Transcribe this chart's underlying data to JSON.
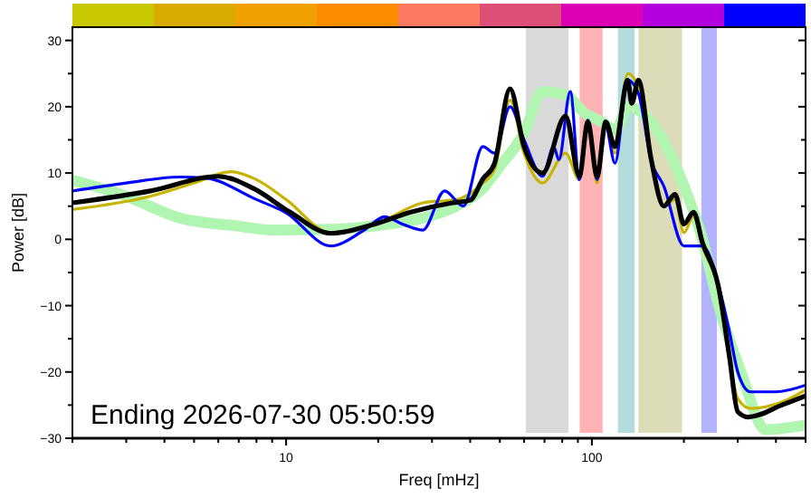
{
  "chart_data": {
    "type": "line",
    "xlabel": "Freq [mHz]",
    "ylabel": "Power [dB]",
    "log": "x",
    "xlim": [
      2,
      500
    ],
    "ylim": [
      -30,
      32
    ],
    "xticks": [
      {
        "value": 2,
        "label": null
      },
      {
        "value": 3,
        "label": null
      },
      {
        "value": 4,
        "label": null
      },
      {
        "value": 5,
        "label": null
      },
      {
        "value": 6,
        "label": null
      },
      {
        "value": 7,
        "label": null
      },
      {
        "value": 8,
        "label": null
      },
      {
        "value": 9,
        "label": null
      },
      10,
      {
        "value": 20,
        "label": null
      },
      {
        "value": 30,
        "label": null
      },
      {
        "value": 40,
        "label": null
      },
      {
        "value": 50,
        "label": null
      },
      {
        "value": 60,
        "label": null
      },
      {
        "value": 70,
        "label": null
      },
      {
        "value": 80,
        "label": null
      },
      {
        "value": 90,
        "label": null
      },
      100,
      {
        "value": 200,
        "label": null
      },
      {
        "value": 300,
        "label": null
      },
      {
        "value": 400,
        "label": null
      },
      {
        "value": 500,
        "label": null
      }
    ],
    "yticks": [
      -30,
      {
        "value": -25,
        "label": null
      },
      -20,
      {
        "value": -15,
        "label": null
      },
      -10,
      {
        "value": -5,
        "label": null
      },
      0,
      {
        "value": 5,
        "label": null
      },
      10,
      {
        "value": 15,
        "label": null
      },
      20,
      {
        "value": 25,
        "label": null
      },
      30
    ],
    "grid": false,
    "line_style": "solid",
    "bands": [
      {
        "axis": "x",
        "from": 60,
        "to": 85,
        "color": "#d9d9d9"
      },
      {
        "axis": "x",
        "from": 90,
        "to": 110,
        "color": "#ffb3b3"
      },
      {
        "axis": "x",
        "from": 120,
        "to": 140,
        "color": "#b3dcdc"
      },
      {
        "axis": "x",
        "from": 140,
        "to": 200,
        "color": "#dcdcb8"
      },
      {
        "axis": "x",
        "from": 225,
        "to": 260,
        "color": "#b3b3ff"
      }
    ],
    "series": [
      {
        "color": "#b0f5b0",
        "x": [
          2,
          3,
          4.5,
          7,
          9,
          14,
          20,
          28,
          36,
          44,
          50,
          60,
          69,
          82,
          95,
          108,
          120,
          131,
          156,
          198,
          230,
          259,
          310,
          370,
          500
        ],
        "values": [
          8.9,
          6.5,
          3.2,
          2,
          1.4,
          1.5,
          2.1,
          3.2,
          5,
          7.7,
          11,
          16,
          22.3,
          21.8,
          19,
          17.7,
          16.5,
          20,
          17.7,
          8.6,
          0,
          -9.7,
          -20.5,
          -28.7,
          -28
        ]
      },
      {
        "color": "#c8b400",
        "x": [
          2,
          3.6,
          5,
          6.6,
          8,
          10,
          14,
          20,
          28,
          36,
          44,
          48,
          54,
          60,
          69,
          82,
          91,
          97,
          104,
          111,
          119,
          131,
          142,
          156,
          172,
          187,
          200,
          215,
          230,
          259,
          282,
          300,
          330,
          420,
          500
        ],
        "values": [
          4.5,
          6.5,
          8.5,
          10.2,
          9,
          6,
          1,
          2.5,
          5.5,
          6,
          8.5,
          10.5,
          21,
          13,
          8.5,
          13,
          9,
          17,
          8.5,
          17,
          13,
          25,
          23,
          12,
          5,
          6,
          1,
          3.5,
          -1,
          -7.5,
          -18,
          -24,
          -25.5,
          -24.5,
          -22.7
        ]
      },
      {
        "color": "#0000ff",
        "x": [
          2,
          3,
          4.5,
          5.5,
          8,
          10,
          14,
          18,
          21,
          24,
          28,
          33,
          38,
          44,
          48,
          54,
          60,
          69,
          75,
          78,
          85,
          91,
          97,
          104,
          111,
          119,
          131,
          142,
          156,
          172,
          200,
          230,
          260,
          282,
          300,
          330,
          400,
          500
        ],
        "values": [
          7.3,
          8.5,
          9.4,
          9.2,
          6,
          4,
          -1,
          1.4,
          3.4,
          2.3,
          1.4,
          7.3,
          5,
          14,
          13,
          20,
          15,
          9.5,
          14,
          12,
          22.3,
          9,
          18,
          9,
          17,
          11.5,
          24,
          22,
          12,
          8,
          -1,
          -1,
          -7,
          -14,
          -20,
          -23,
          -23,
          -22
        ]
      },
      {
        "color": "#000000",
        "x": [
          2,
          3.6,
          6,
          7.8,
          10.3,
          14,
          19.5,
          25.6,
          35,
          40,
          44,
          48,
          54,
          60,
          69,
          82,
          91,
          97,
          104,
          111,
          119,
          131,
          135,
          142,
          156,
          172,
          187,
          200,
          215,
          230,
          259,
          282,
          300,
          324,
          423,
          500
        ],
        "values": [
          5.5,
          7.3,
          9.5,
          7.7,
          4.1,
          0.9,
          2.3,
          4.1,
          5.5,
          5.9,
          9.1,
          11.4,
          22.7,
          14,
          10,
          18.6,
          9.5,
          17.7,
          9.5,
          17.7,
          14,
          24,
          20.5,
          24,
          12.3,
          5,
          6.8,
          2.3,
          4.1,
          -0.5,
          -7,
          -17.8,
          -26,
          -26.8,
          -24.9,
          -23.6
        ]
      }
    ],
    "annotations": [
      "Ending 2026-07-30 05:50:59"
    ]
  }
}
